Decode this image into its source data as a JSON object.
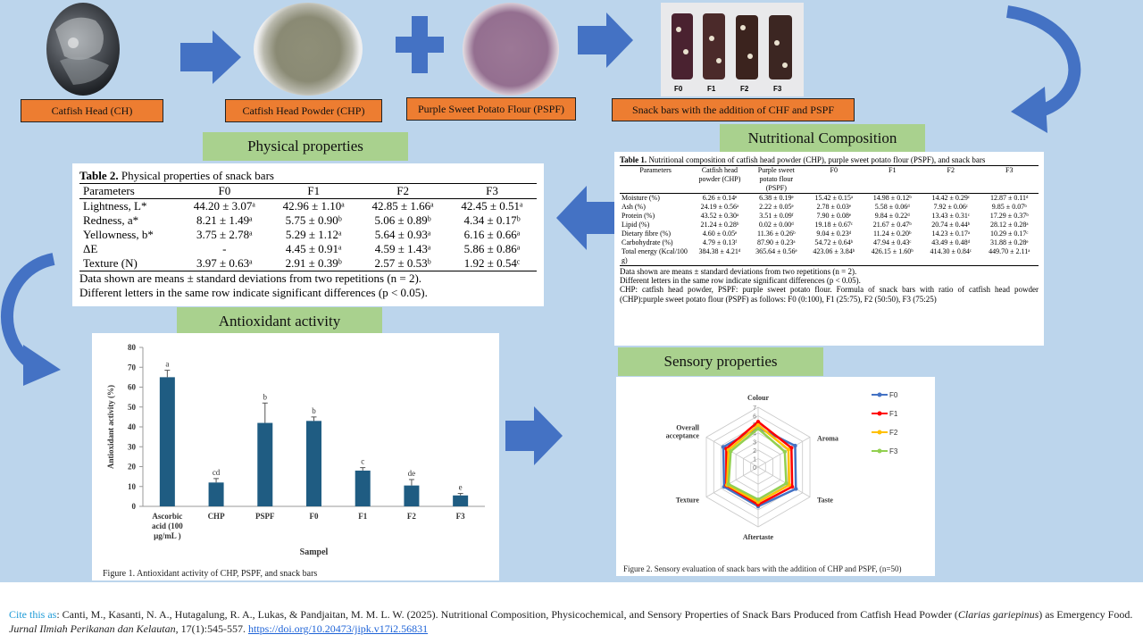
{
  "flow": {
    "steps": [
      {
        "label": "Catfish Head  (CH)"
      },
      {
        "label": "Catfish Head Powder (CHP)"
      },
      {
        "label": "Purple Sweet Potato Flour (PSPF)"
      },
      {
        "label": "Snack bars with the addition of CHF  and PSPF"
      }
    ],
    "bar_labels": [
      "F0",
      "F1",
      "F2",
      "F3"
    ]
  },
  "sections": {
    "physical": "Physical properties",
    "nutritional": "Nutritional  Composition",
    "antioxidant": "Antioxidant  activity",
    "sensory": "Sensory properties"
  },
  "table2": {
    "caption_bold": "Table 2.",
    "caption": " Physical properties of snack bars",
    "headers": [
      "Parameters",
      "F0",
      "F1",
      "F2",
      "F3"
    ],
    "rows": [
      [
        "Lightness, L*",
        "44.20 ± 3.07ᵃ",
        "42.96 ± 1.10ᵃ",
        "42.85 ± 1.66ᵃ",
        "42.45 ± 0.51ᵃ"
      ],
      [
        "Redness, a*",
        "8.21 ± 1.49ᵃ",
        "5.75 ± 0.90ᵇ",
        "5.06 ± 0.89ᵇ",
        "4.34 ± 0.17ᵇ"
      ],
      [
        "Yellowness, b*",
        "3.75 ± 2.78ᵃ",
        "5.29 ± 1.12ᵃ",
        "5.64 ± 0.93ᵃ",
        "6.16 ± 0.66ᵃ"
      ],
      [
        "ΔE",
        "-",
        "4.45 ± 0.91ᵃ",
        "4.59 ± 1.43ᵃ",
        "5.86 ± 0.86ᵃ"
      ],
      [
        "Texture (N)",
        "3.97 ± 0.63ᵃ",
        "2.91 ± 0.39ᵇ",
        "2.57 ± 0.53ᵇ",
        "1.92 ± 0.54ᶜ"
      ]
    ],
    "note1": "Data shown are means ± standard deviations from two repetitions (n = 2).",
    "note2": "Different letters in the same row indicate significant differences (p < 0.05)."
  },
  "table1": {
    "caption_bold": "Table 1.",
    "caption": " Nutritional composition of catfish head powder (CHP), purple sweet potato flour (PSPF), and snack bars",
    "headers": [
      "Parameters",
      "Catfish head powder (CHP)",
      "Purple sweet potato flour (PSPF)",
      "F0",
      "F1",
      "F2",
      "F3"
    ],
    "rows": [
      [
        "Moisture (%)",
        "6.26 ± 0.14ᵉ",
        "6.38 ± 0.19ᵉ",
        "15.42 ± 0.15ᵃ",
        "14.98 ± 0.12ᵇ",
        "14.42 ± 0.29ᶜ",
        "12.87 ± 0.11ᵈ"
      ],
      [
        "Ash (%)",
        "24.19 ± 0.56ᵃ",
        "2.22 ± 0.05ᵉ",
        "2.78 ± 0.03ᵉ",
        "5.58 ± 0.06ᵈ",
        "7.92 ± 0.06ᶜ",
        "9.85 ± 0.07ᵇ"
      ],
      [
        "Protein (%)",
        "43.52 ± 0.30ᵃ",
        "3.51 ± 0.09ᶠ",
        "7.90 ± 0.08ᵉ",
        "9.84 ± 0.22ᵈ",
        "13.43 ± 0.31ᶜ",
        "17.29 ± 0.37ᵇ"
      ],
      [
        "Lipid (%)",
        "21.24 ± 0.28ᵇ",
        "0.02 ± 0.00ᵈ",
        "19.18 ± 0.67ᶜ",
        "21.67 ± 0.47ᵇ",
        "20.74 ± 0.44ᵇ",
        "28.12 ± 0.28ᵃ"
      ],
      [
        "Dietary fibre (%)",
        "4.60 ± 0.05ᵉ",
        "11.36 ± 0.26ᵇ",
        "9.04 ± 0.23ᵈ",
        "11.24 ± 0.20ᵇ",
        "14.23 ± 0.17ᵃ",
        "10.29 ± 0.17ᶜ"
      ],
      [
        "Carbohydrate (%)",
        "4.79 ± 0.13ᶠ",
        "87.90 ± 0.23ᵃ",
        "54.72 ± 0.64ᵇ",
        "47.94 ± 0.43ᶜ",
        "43.49 ± 0.48ᵈ",
        "31.88 ± 0.28ᵉ"
      ],
      [
        "Total energy (Kcal/100 g)",
        "384.38 ± 4.21ᵈ",
        "365.64 ± 0.56ᵉ",
        "423.06 ± 3.84ᵇ",
        "426.15 ± 1.60ᵇ",
        "414.30 ± 0.84ᶜ",
        "449.70 ± 2.11ᵃ"
      ]
    ],
    "note1": "Data shown are means ± standard deviations from two repetitions (n = 2).",
    "note2": "Different letters in the same row indicate significant differences (p < 0.05).",
    "note3": "CHP: catfish head powder, PSPF: purple sweet potato flour. Formula of snack bars with ratio of catfish head powder (CHP):purple sweet potato flour (PSPF) as follows: F0 (0:100), F1 (25:75), F2 (50:50), F3 (75:25)"
  },
  "chart_data": [
    {
      "type": "bar",
      "caption": "Figure 1. Antioxidant activity of CHP, PSPF, and snack bars",
      "categories": [
        "Ascorbic acid (100 µg/mL )",
        "CHP",
        "PSPF",
        "F0",
        "F1",
        "F2",
        "F3"
      ],
      "values": [
        65,
        12,
        42,
        43,
        18,
        10.5,
        5.5
      ],
      "errors": [
        3.5,
        2,
        10,
        2,
        1.5,
        3,
        1
      ],
      "letters": [
        "a",
        "cd",
        "b",
        "b",
        "c",
        "de",
        "e"
      ],
      "xlabel": "Sampel",
      "ylabel": "Antioxidant activity (%)",
      "ylim": [
        0,
        80
      ],
      "yticks": [
        0,
        10,
        20,
        30,
        40,
        50,
        60,
        70,
        80
      ],
      "bar_color": "#1f5c82"
    },
    {
      "type": "radar",
      "caption": "Figure 2. Sensory evaluation of snack bars with the addition of CHP and PSPF, (n=50)",
      "axes": [
        "Colour",
        "Aroma",
        "Taste",
        "Aftertaste",
        "Texture",
        "Overall acceptance"
      ],
      "rticks": [
        0,
        1,
        2,
        3,
        4,
        5,
        6,
        7
      ],
      "rmax": 7,
      "series": [
        {
          "name": "F0",
          "color": "#4472c4",
          "values": [
            4.6,
            5.0,
            5.1,
            4.6,
            4.6,
            4.7
          ]
        },
        {
          "name": "F1",
          "color": "#ff0000",
          "values": [
            5.3,
            4.5,
            4.6,
            4.4,
            4.3,
            4.3
          ]
        },
        {
          "name": "F2",
          "color": "#ffc000",
          "values": [
            4.9,
            4.1,
            4.2,
            4.1,
            4.2,
            4.0
          ]
        },
        {
          "name": "F3",
          "color": "#92d050",
          "values": [
            4.5,
            3.6,
            3.8,
            3.8,
            4.0,
            3.7
          ]
        }
      ]
    }
  ],
  "citation": {
    "label": "Cite this as",
    "text": ": Canti, M., Kasanti, N. A., Hutagalung, R. A., Lukas, & Pandjaitan, M. M. L. W. (2025). Nutritional Composition, Physicochemical, and Sensory Properties of Snack Bars Produced from Catfish Head Powder (",
    "species": "Clarias gariepinus",
    "text2": ") as Emergency Food. ",
    "journal": "Jurnal Ilmiah Perikanan dan Kelautan",
    "text3": ", 17(1):545-557. ",
    "doi": "https://doi.org/10.20473/jipk.v17i2.56831"
  },
  "colors": {
    "background": "#bcd5ec",
    "arrow": "#4472c4",
    "orange": "#ed7d31",
    "green": "#a9d18e"
  }
}
